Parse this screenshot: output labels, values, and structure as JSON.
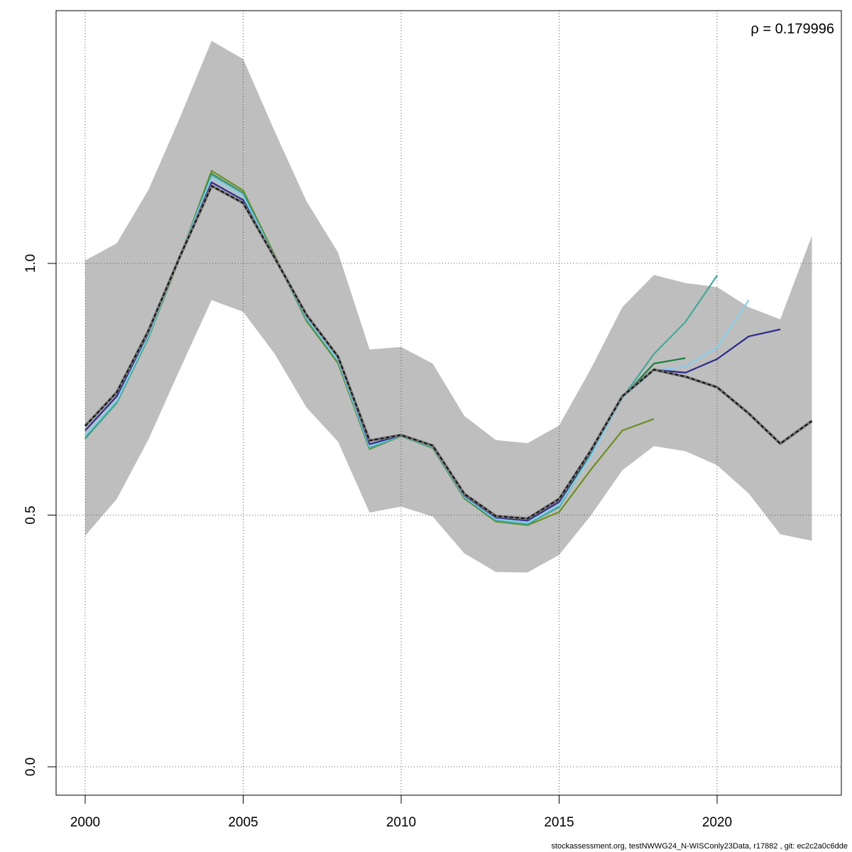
{
  "chart_data": {
    "type": "line",
    "xlabel": "",
    "ylabel": "",
    "xlim": [
      2000,
      2023
    ],
    "ylim": [
      0.0,
      1.5
    ],
    "x_ticks": [
      2000,
      2005,
      2010,
      2015,
      2020
    ],
    "y_ticks": [
      0.0,
      0.5,
      1.0
    ],
    "y_tick_labels": [
      "0.0",
      "0.5",
      "1.0"
    ],
    "grid": true,
    "annotation": "ρ = 0.179996",
    "band": {
      "color": "#bebebe",
      "x": [
        2000,
        2001,
        2002,
        2003,
        2004,
        2005,
        2006,
        2007,
        2008,
        2009,
        2010,
        2011,
        2012,
        2013,
        2014,
        2015,
        2016,
        2017,
        2018,
        2019,
        2020,
        2021,
        2022,
        2023
      ],
      "upper": [
        1.006,
        1.04,
        1.146,
        1.29,
        1.442,
        1.406,
        1.262,
        1.124,
        1.022,
        0.829,
        0.834,
        0.801,
        0.697,
        0.649,
        0.643,
        0.678,
        0.79,
        0.913,
        0.977,
        0.961,
        0.953,
        0.913,
        0.889,
        1.055
      ],
      "lower": [
        0.459,
        0.532,
        0.65,
        0.79,
        0.927,
        0.904,
        0.82,
        0.714,
        0.646,
        0.505,
        0.517,
        0.497,
        0.424,
        0.387,
        0.386,
        0.421,
        0.499,
        0.589,
        0.637,
        0.627,
        0.599,
        0.543,
        0.462,
        0.449
      ]
    },
    "series": [
      {
        "color": "#6b8e23",
        "x": [
          2000,
          2001,
          2002,
          2003,
          2004,
          2005,
          2006,
          2007,
          2008,
          2009,
          2010,
          2011,
          2012,
          2013,
          2014,
          2015,
          2016,
          2017,
          2018
        ],
        "values": [
          0.652,
          0.723,
          0.852,
          1.012,
          1.184,
          1.145,
          1.016,
          0.886,
          0.802,
          0.631,
          0.657,
          0.633,
          0.533,
          0.487,
          0.48,
          0.506,
          0.59,
          0.668,
          0.691
        ]
      },
      {
        "color": "#1a7f3c",
        "x": [
          2000,
          2001,
          2002,
          2003,
          2004,
          2005,
          2006,
          2007,
          2008,
          2009,
          2010,
          2011,
          2012,
          2013,
          2014,
          2015,
          2016,
          2017,
          2018,
          2019
        ],
        "values": [
          0.653,
          0.724,
          0.853,
          1.014,
          1.178,
          1.14,
          1.013,
          0.889,
          0.805,
          0.633,
          0.659,
          0.636,
          0.535,
          0.489,
          0.482,
          0.519,
          0.624,
          0.733,
          0.801,
          0.812
        ]
      },
      {
        "color": "#45a89a",
        "x": [
          2000,
          2001,
          2002,
          2003,
          2004,
          2005,
          2006,
          2007,
          2008,
          2009,
          2010,
          2011,
          2012,
          2013,
          2014,
          2015,
          2016,
          2017,
          2018,
          2019,
          2020
        ],
        "values": [
          0.652,
          0.723,
          0.853,
          1.014,
          1.176,
          1.139,
          1.013,
          0.889,
          0.806,
          0.633,
          0.657,
          0.634,
          0.535,
          0.489,
          0.482,
          0.516,
          0.619,
          0.733,
          0.82,
          0.884,
          0.976
        ]
      },
      {
        "color": "#87ceeb",
        "x": [
          2000,
          2001,
          2002,
          2003,
          2004,
          2005,
          2006,
          2007,
          2008,
          2009,
          2010,
          2011,
          2012,
          2013,
          2014,
          2015,
          2016,
          2017,
          2018,
          2019,
          2020,
          2021
        ],
        "values": [
          0.658,
          0.728,
          0.857,
          1.014,
          1.17,
          1.133,
          1.012,
          0.893,
          0.808,
          0.637,
          0.658,
          0.636,
          0.537,
          0.492,
          0.485,
          0.52,
          0.616,
          0.733,
          0.787,
          0.795,
          0.833,
          0.927
        ]
      },
      {
        "color": "#2e2a8c",
        "x": [
          2000,
          2001,
          2002,
          2003,
          2004,
          2005,
          2006,
          2007,
          2008,
          2009,
          2010,
          2011,
          2012,
          2013,
          2014,
          2015,
          2016,
          2017,
          2018,
          2019,
          2020,
          2021,
          2022
        ],
        "values": [
          0.668,
          0.736,
          0.862,
          1.014,
          1.161,
          1.126,
          1.01,
          0.897,
          0.814,
          0.641,
          0.658,
          0.637,
          0.539,
          0.495,
          0.489,
          0.526,
          0.625,
          0.736,
          0.789,
          0.783,
          0.81,
          0.855,
          0.869
        ]
      },
      {
        "color": "#111111",
        "dashed": true,
        "x": [
          2000,
          2001,
          2002,
          2003,
          2004,
          2005,
          2006,
          2007,
          2008,
          2009,
          2010,
          2011,
          2012,
          2013,
          2014,
          2015,
          2016,
          2017,
          2018,
          2019,
          2020,
          2021,
          2022,
          2023
        ],
        "values": [
          0.677,
          0.744,
          0.866,
          1.014,
          1.154,
          1.12,
          1.011,
          0.898,
          0.815,
          0.648,
          0.659,
          0.638,
          0.542,
          0.498,
          0.493,
          0.532,
          0.628,
          0.736,
          0.789,
          0.775,
          0.754,
          0.702,
          0.642,
          0.687
        ]
      }
    ]
  },
  "footer": "stockassessment.org, testNWWG24_N-WISConly23Data, r17882 , git: ec2c2a0c6dde"
}
